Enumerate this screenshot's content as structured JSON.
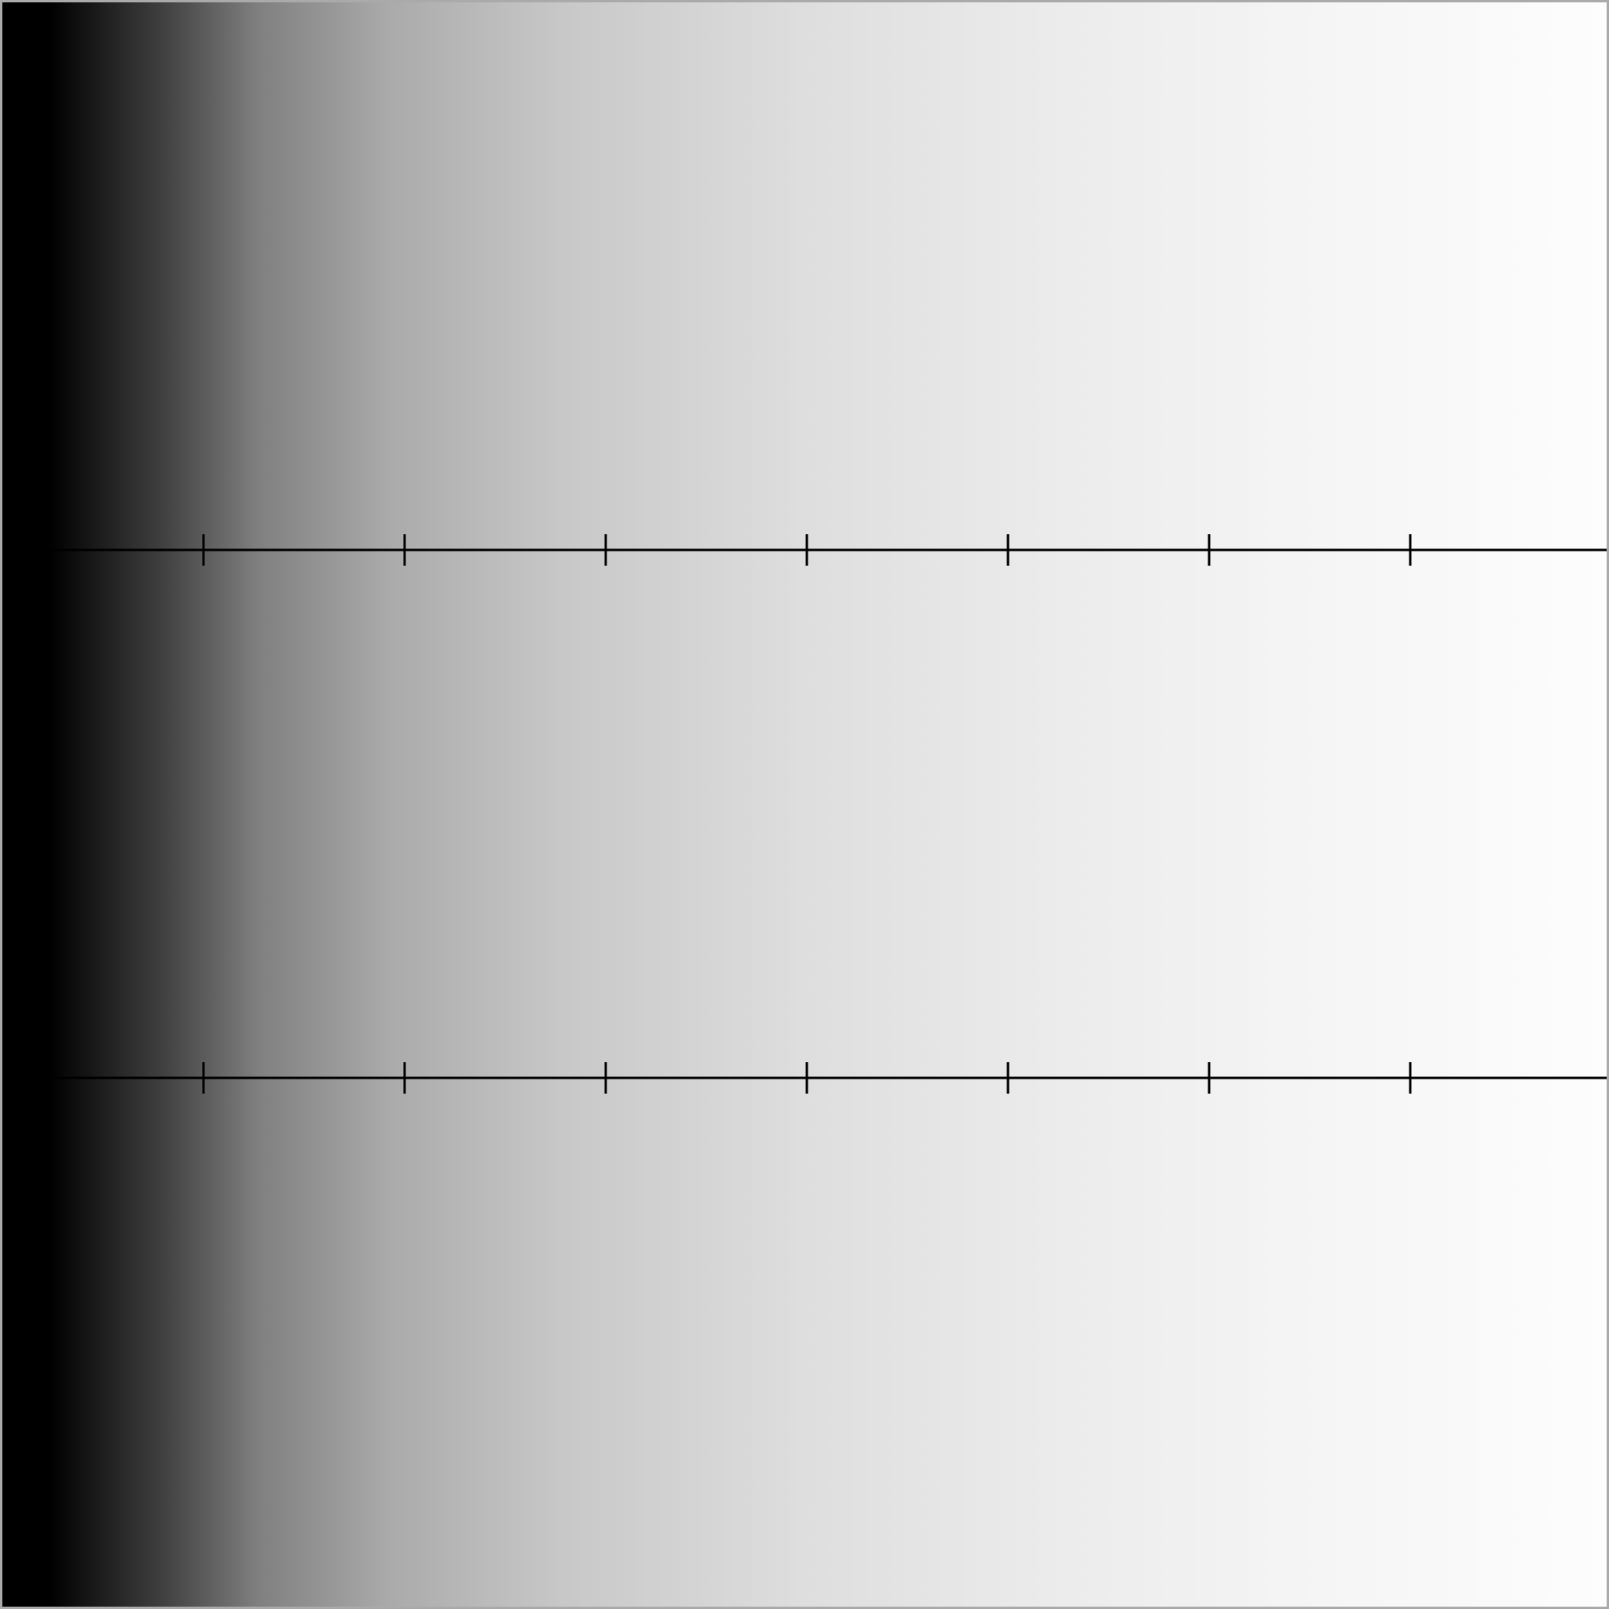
{
  "gradient": {
    "stops": [
      {
        "offset": 0.0,
        "color": "#000000"
      },
      {
        "offset": 0.03,
        "color": "#000000"
      },
      {
        "offset": 0.1,
        "color": "#404040"
      },
      {
        "offset": 0.16,
        "color": "#808080"
      },
      {
        "offset": 0.24,
        "color": "#aaaaaa"
      },
      {
        "offset": 0.35,
        "color": "#c8c8c8"
      },
      {
        "offset": 0.5,
        "color": "#dedede"
      },
      {
        "offset": 0.65,
        "color": "#ebebeb"
      },
      {
        "offset": 0.8,
        "color": "#f4f4f4"
      },
      {
        "offset": 1.0,
        "color": "#fdfdfd"
      }
    ]
  },
  "rulers": [
    {
      "name": "ruler-upper",
      "tick_count": 7
    },
    {
      "name": "ruler-lower",
      "tick_count": 7
    }
  ],
  "colors": {
    "line": "#000000",
    "border": "#aaaaaa"
  }
}
